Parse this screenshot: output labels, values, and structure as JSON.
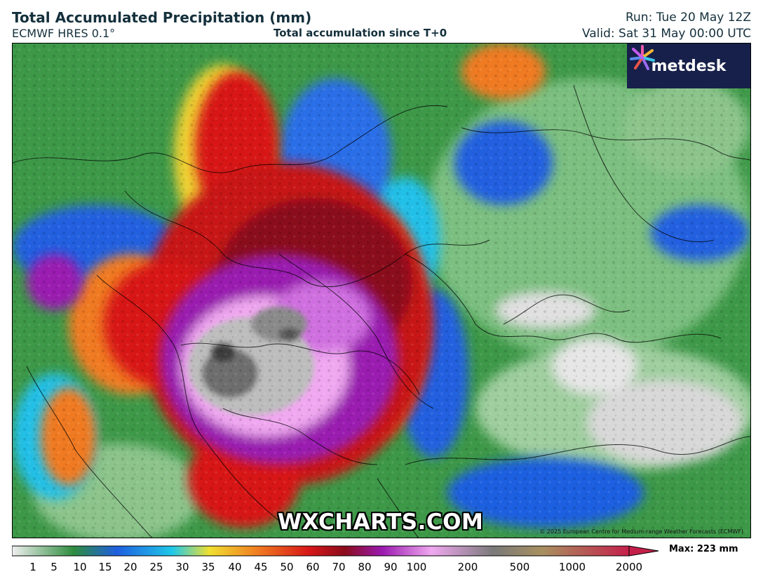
{
  "header": {
    "title": "Total Accumulated Precipitation (mm)",
    "model": "ECMWF HRES 0.1°",
    "subtitle": "Total accumulation since T+0",
    "run": "Run: Tue 20 May 12Z",
    "valid": "Valid: Sat 31 May 00:00 UTC"
  },
  "logo": {
    "text": "metdesk",
    "icon": "metdesk-star-icon"
  },
  "watermark": "WXCHARTS.COM",
  "copyright": "© 2025 European Centre for Medium-range Weather Forecasts (ECMWF)",
  "colorbar": {
    "ticks": [
      "1",
      "5",
      "10",
      "15",
      "20",
      "25",
      "30",
      "35",
      "40",
      "45",
      "50",
      "60",
      "70",
      "80",
      "90",
      "100",
      "200",
      "500",
      "1000",
      "2000"
    ],
    "max_label": "Max: 223 mm",
    "colors": {
      "low": "#f0f0f0",
      "green": "#2f8d3f",
      "blue": "#1f5fe0",
      "cyan": "#20c8e8",
      "yellow": "#f0e030",
      "orange": "#f07a20",
      "red": "#d81818",
      "dark_red": "#8a0c1c",
      "purple": "#9a1ab0",
      "pink": "#f0a8f0",
      "grey": "#7a7a7a",
      "tan": "#a89060",
      "crimson": "#c4204a"
    }
  }
}
